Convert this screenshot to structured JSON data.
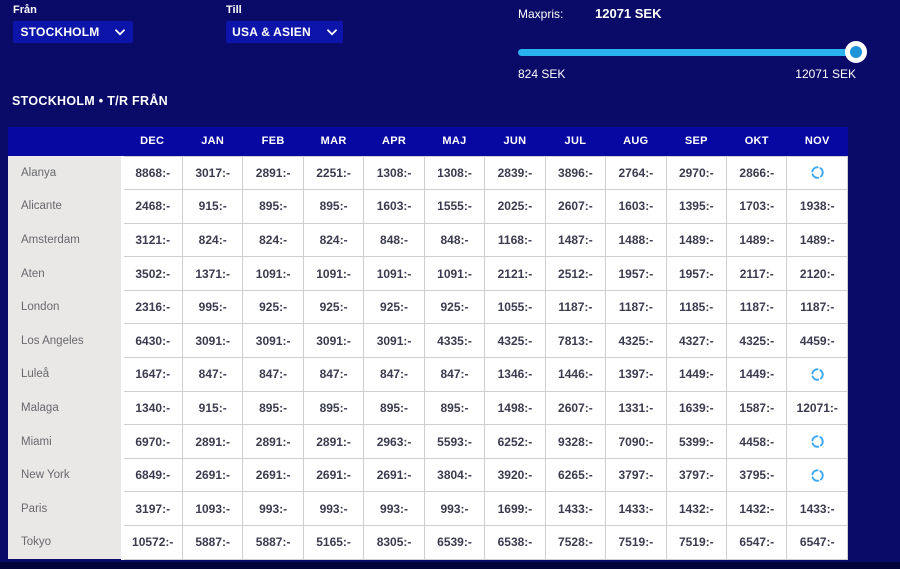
{
  "form": {
    "from_label": "Från",
    "from_value": "STOCKHOLM",
    "to_label": "Till",
    "to_value": "USA & ASIEN"
  },
  "maxpris": {
    "label": "Maxpris:",
    "value": "12071 SEK",
    "min_label": "824 SEK",
    "max_label": "12071 SEK",
    "slider_percent": 100,
    "track_color": "#29b2ee",
    "handle_color": "#1e93d6"
  },
  "section_title": "STOCKHOLM • T/R FRÅN",
  "table": {
    "months": [
      "DEC",
      "JAN",
      "FEB",
      "MAR",
      "APR",
      "MAJ",
      "JUN",
      "JUL",
      "AUG",
      "SEP",
      "OKT",
      "NOV"
    ],
    "loading_icon": "loading-spinner",
    "rows": [
      {
        "city": "Alanya",
        "prices": [
          "8868:-",
          "3017:-",
          "2891:-",
          "2251:-",
          "1308:-",
          "1308:-",
          "2839:-",
          "3896:-",
          "2764:-",
          "2970:-",
          "2866:-",
          null
        ]
      },
      {
        "city": "Alicante",
        "prices": [
          "2468:-",
          "915:-",
          "895:-",
          "895:-",
          "1603:-",
          "1555:-",
          "2025:-",
          "2607:-",
          "1603:-",
          "1395:-",
          "1703:-",
          "1938:-"
        ]
      },
      {
        "city": "Amsterdam",
        "prices": [
          "3121:-",
          "824:-",
          "824:-",
          "824:-",
          "848:-",
          "848:-",
          "1168:-",
          "1487:-",
          "1488:-",
          "1489:-",
          "1489:-",
          "1489:-"
        ]
      },
      {
        "city": "Aten",
        "prices": [
          "3502:-",
          "1371:-",
          "1091:-",
          "1091:-",
          "1091:-",
          "1091:-",
          "2121:-",
          "2512:-",
          "1957:-",
          "1957:-",
          "2117:-",
          "2120:-"
        ]
      },
      {
        "city": "London",
        "prices": [
          "2316:-",
          "995:-",
          "925:-",
          "925:-",
          "925:-",
          "925:-",
          "1055:-",
          "1187:-",
          "1187:-",
          "1185:-",
          "1187:-",
          "1187:-"
        ]
      },
      {
        "city": "Los Angeles",
        "prices": [
          "6430:-",
          "3091:-",
          "3091:-",
          "3091:-",
          "3091:-",
          "4335:-",
          "4325:-",
          "7813:-",
          "4325:-",
          "4327:-",
          "4325:-",
          "4459:-"
        ]
      },
      {
        "city": "Luleå",
        "prices": [
          "1647:-",
          "847:-",
          "847:-",
          "847:-",
          "847:-",
          "847:-",
          "1346:-",
          "1446:-",
          "1397:-",
          "1449:-",
          "1449:-",
          null
        ]
      },
      {
        "city": "Malaga",
        "prices": [
          "1340:-",
          "915:-",
          "895:-",
          "895:-",
          "895:-",
          "895:-",
          "1498:-",
          "2607:-",
          "1331:-",
          "1639:-",
          "1587:-",
          "12071:-"
        ]
      },
      {
        "city": "Miami",
        "prices": [
          "6970:-",
          "2891:-",
          "2891:-",
          "2891:-",
          "2963:-",
          "5593:-",
          "6252:-",
          "9328:-",
          "7090:-",
          "5399:-",
          "4458:-",
          null
        ]
      },
      {
        "city": "New York",
        "prices": [
          "6849:-",
          "2691:-",
          "2691:-",
          "2691:-",
          "2691:-",
          "3804:-",
          "3920:-",
          "6265:-",
          "3797:-",
          "3797:-",
          "3795:-",
          null
        ]
      },
      {
        "city": "Paris",
        "prices": [
          "3197:-",
          "1093:-",
          "993:-",
          "993:-",
          "993:-",
          "993:-",
          "1699:-",
          "1433:-",
          "1433:-",
          "1432:-",
          "1432:-",
          "1433:-"
        ]
      },
      {
        "city": "Tokyo",
        "prices": [
          "10572:-",
          "5887:-",
          "5887:-",
          "5165:-",
          "8305:-",
          "6539:-",
          "6538:-",
          "7528:-",
          "7519:-",
          "7519:-",
          "6547:-",
          "6547:-"
        ]
      }
    ]
  },
  "colors": {
    "page_background": "#0a0a69",
    "button_blue": "#0d14a9",
    "table_header_blue": "#0707a2",
    "city_column_gray": "#e9e8e6",
    "spinner_blue": "#3fa9f5"
  }
}
